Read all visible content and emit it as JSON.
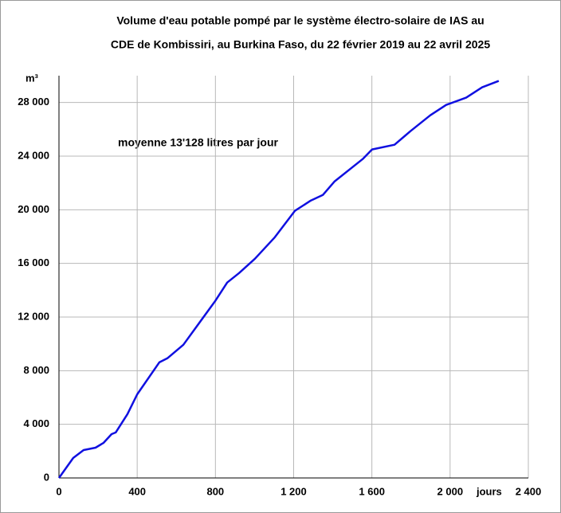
{
  "chart_data": {
    "type": "line",
    "title": "Volume d'eau potable pompé par le système électro-solaire de IAS au",
    "subtitle": "CDE de Kombissiri, au Burkina Faso, du 22 février 2019 au 22 avril 2025",
    "y_label": "m³",
    "x_label": "jours",
    "annotation": "moyenne  13'128 litres par jour",
    "x": [
      0,
      73,
      126,
      187,
      228,
      269,
      290,
      350,
      400,
      513,
      554,
      636,
      799,
      860,
      921,
      1002,
      1104,
      1206,
      1288,
      1349,
      1410,
      1553,
      1601,
      1716,
      1797,
      1899,
      1980,
      2082,
      2164,
      2249
    ],
    "series": [
      {
        "name": "Volume",
        "color": "#1010e0",
        "values": [
          0,
          1490,
          2080,
          2260,
          2620,
          3270,
          3390,
          4760,
          6240,
          8620,
          8920,
          9930,
          13200,
          14570,
          15280,
          16350,
          17950,
          19920,
          20690,
          21100,
          22120,
          23780,
          24500,
          24850,
          25860,
          27050,
          27820,
          28360,
          29130,
          29610
        ]
      }
    ],
    "xlim": [
      0,
      2400
    ],
    "ylim": [
      0,
      30000
    ],
    "xticks": [
      0,
      400,
      800,
      {
        "value": 1200,
        "label": "1 200"
      },
      {
        "value": 1600,
        "label": "1 600"
      },
      {
        "value": 2000,
        "label": "2 000"
      },
      {
        "value": 2400,
        "label": "2 400"
      }
    ],
    "yticks": [
      0,
      {
        "value": 4000,
        "label": "4 000"
      },
      {
        "value": 8000,
        "label": "8 000"
      },
      {
        "value": 12000,
        "label": "12 000"
      },
      {
        "value": 16000,
        "label": "16 000"
      },
      {
        "value": 20000,
        "label": "20 000"
      },
      {
        "value": 24000,
        "label": "24 000"
      },
      {
        "value": 28000,
        "label": "28 000"
      }
    ],
    "grid": true
  }
}
